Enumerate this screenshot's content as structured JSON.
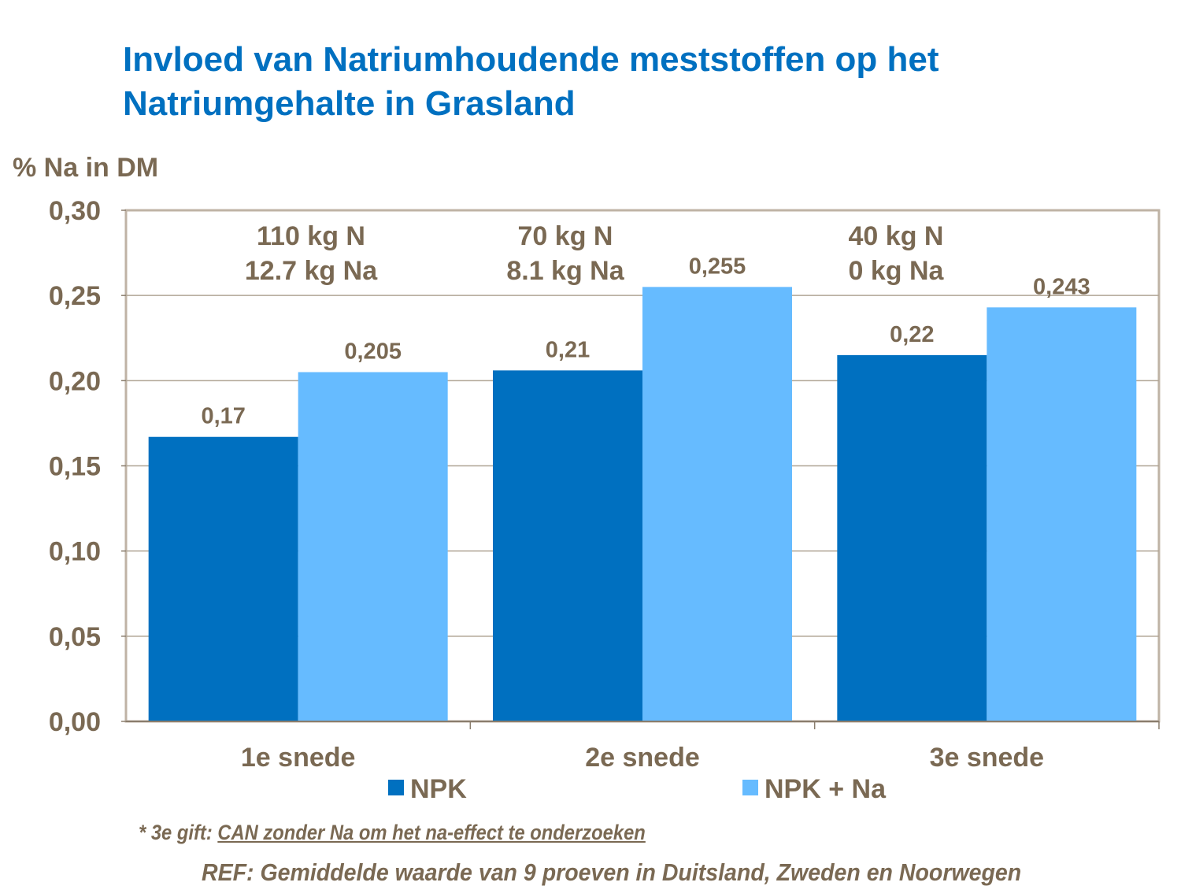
{
  "title_line1": "Invloed van Natriumhoudende meststoffen op het",
  "title_line2": "Natriumgehalte in Grasland",
  "footnote_prefix": "* 3e gift: ",
  "footnote_underlined": "CAN zonder Na om het na-effect te onderzoeken",
  "reference": "REF: Gemiddelde waarde van 9 proeven in Duitsland, Zweden en Noorwegen",
  "chart_data": {
    "type": "bar",
    "ylabel": "% Na in DM",
    "ylim": [
      0,
      0.3
    ],
    "yticks": [
      "0,00",
      "0,05",
      "0,10",
      "0,15",
      "0,20",
      "0,25",
      "0,30"
    ],
    "grid": true,
    "legend_position": "bottom",
    "categories": [
      "1e snede",
      "2e snede",
      "3e snede"
    ],
    "annotations": [
      [
        "110 kg N",
        "12.7 kg Na"
      ],
      [
        "70 kg N",
        "8.1 kg Na"
      ],
      [
        "40 kg N",
        "0 kg Na"
      ]
    ],
    "series": [
      {
        "name": "NPK",
        "color": "#0070c0",
        "values": [
          0.167,
          0.206,
          0.215
        ],
        "labels": [
          "0,17",
          "0,21",
          "0,22"
        ]
      },
      {
        "name": "NPK + Na",
        "color": "#66bbff",
        "values": [
          0.205,
          0.255,
          0.243
        ],
        "labels": [
          "0,205",
          "0,255",
          "0,243"
        ]
      }
    ]
  }
}
